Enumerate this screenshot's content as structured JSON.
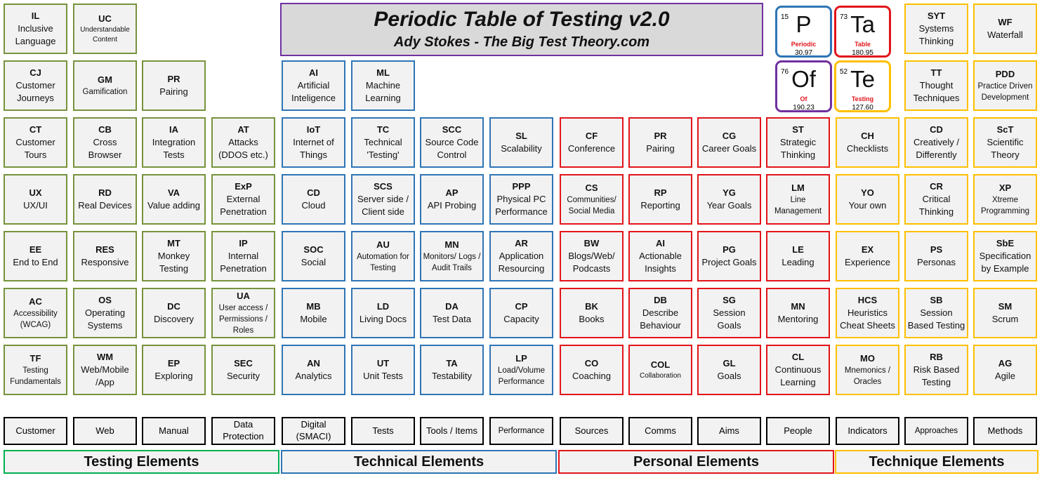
{
  "header": {
    "title": "Periodic Table of Testing v2.0",
    "subtitle": "Ady Stokes - The Big Test Theory.com"
  },
  "periodic_tiles": [
    {
      "number": "15",
      "symbol": "P",
      "name": "Periodic",
      "weight": "30.97",
      "color": "#2e75b6"
    },
    {
      "number": "73",
      "symbol": "Ta",
      "name": "Table",
      "weight": "180.95",
      "color": "#e2141a"
    },
    {
      "number": "76",
      "symbol": "Of",
      "name": "Of",
      "weight": "190.23",
      "color": "#7030a0"
    },
    {
      "number": "52",
      "symbol": "Te",
      "name": "Testing",
      "weight": "127.60",
      "color": "#ffc000"
    }
  ],
  "elements": {
    "IL": {
      "symbol": "IL",
      "name": "Inclusive Language"
    },
    "UC": {
      "symbol": "UC",
      "name": "Understandable Content"
    },
    "SYT": {
      "symbol": "SYT",
      "name": "Systems Thinking"
    },
    "WF": {
      "symbol": "WF",
      "name": "Waterfall"
    },
    "CJ": {
      "symbol": "CJ",
      "name": "Customer Journeys"
    },
    "GM": {
      "symbol": "GM",
      "name": "Gamification"
    },
    "PR1": {
      "symbol": "PR",
      "name": "Pairing"
    },
    "AI1": {
      "symbol": "AI",
      "name": "Artificial Inteligence"
    },
    "ML": {
      "symbol": "ML",
      "name": "Machine Learning"
    },
    "TT": {
      "symbol": "TT",
      "name": "Thought Techniques"
    },
    "PDD": {
      "symbol": "PDD",
      "name": "Practice Driven Development"
    },
    "CT": {
      "symbol": "CT",
      "name": "Customer Tours"
    },
    "CB": {
      "symbol": "CB",
      "name": "Cross Browser"
    },
    "IA": {
      "symbol": "IA",
      "name": "Integration Tests"
    },
    "AT": {
      "symbol": "AT",
      "name": "Attacks (DDOS etc.)"
    },
    "IoT": {
      "symbol": "IoT",
      "name": "Internet of Things"
    },
    "TC": {
      "symbol": "TC",
      "name": "Technical 'Testing'"
    },
    "SCC": {
      "symbol": "SCC",
      "name": "Source Code Control"
    },
    "SL": {
      "symbol": "SL",
      "name": "Scalability"
    },
    "CF": {
      "symbol": "CF",
      "name": "Conference"
    },
    "PR2": {
      "symbol": "PR",
      "name": "Pairing"
    },
    "CG": {
      "symbol": "CG",
      "name": "Career Goals"
    },
    "ST": {
      "symbol": "ST",
      "name": "Strategic Thinking"
    },
    "CH": {
      "symbol": "CH",
      "name": "Checklists"
    },
    "CD": {
      "symbol": "CD",
      "name": "Creatively / Differently"
    },
    "ScT": {
      "symbol": "ScT",
      "name": "Scientific Theory"
    },
    "UX": {
      "symbol": "UX",
      "name": "UX/UI"
    },
    "RD": {
      "symbol": "RD",
      "name": "Real Devices"
    },
    "VA": {
      "symbol": "VA",
      "name": "Value adding"
    },
    "ExP": {
      "symbol": "ExP",
      "name": "External Penetration"
    },
    "CD2": {
      "symbol": "CD",
      "name": "Cloud"
    },
    "SCS": {
      "symbol": "SCS",
      "name": "Server side / Client side"
    },
    "AP": {
      "symbol": "AP",
      "name": "API Probing"
    },
    "PPP": {
      "symbol": "PPP",
      "name": "Physical PC Performance"
    },
    "CS": {
      "symbol": "CS",
      "name": "Communities/ Social Media"
    },
    "RP": {
      "symbol": "RP",
      "name": "Reporting"
    },
    "YG": {
      "symbol": "YG",
      "name": "Year Goals"
    },
    "LM": {
      "symbol": "LM",
      "name": "Line Management"
    },
    "YO": {
      "symbol": "YO",
      "name": "Your own"
    },
    "CR": {
      "symbol": "CR",
      "name": "Critical Thinking"
    },
    "XP": {
      "symbol": "XP",
      "name": "Xtreme Programming"
    },
    "EE": {
      "symbol": "EE",
      "name": "End to End"
    },
    "RES": {
      "symbol": "RES",
      "name": "Responsive"
    },
    "MT": {
      "symbol": "MT",
      "name": "Monkey Testing"
    },
    "IP": {
      "symbol": "IP",
      "name": "Internal Penetration"
    },
    "SOC": {
      "symbol": "SOC",
      "name": "Social"
    },
    "AU": {
      "symbol": "AU",
      "name": "Automation for Testing"
    },
    "MN1": {
      "symbol": "MN",
      "name": "Monitors/ Logs / Audit Trails"
    },
    "AR": {
      "symbol": "AR",
      "name": "Application Resourcing"
    },
    "BW": {
      "symbol": "BW",
      "name": "Blogs/Web/ Podcasts"
    },
    "AI2": {
      "symbol": "AI",
      "name": "Actionable Insights"
    },
    "PG": {
      "symbol": "PG",
      "name": "Project Goals"
    },
    "LE": {
      "symbol": "LE",
      "name": "Leading"
    },
    "EX": {
      "symbol": "EX",
      "name": "Experience"
    },
    "PS": {
      "symbol": "PS",
      "name": "Personas"
    },
    "SbE": {
      "symbol": "SbE",
      "name": "Specification by Example"
    },
    "AC": {
      "symbol": "AC",
      "name": "Accessibility (WCAG)"
    },
    "OS": {
      "symbol": "OS",
      "name": "Operating Systems"
    },
    "DC": {
      "symbol": "DC",
      "name": "Discovery"
    },
    "UA": {
      "symbol": "UA",
      "name": "User access / Permissions / Roles"
    },
    "MB": {
      "symbol": "MB",
      "name": "Mobile"
    },
    "LD": {
      "symbol": "LD",
      "name": "Living Docs"
    },
    "DA": {
      "symbol": "DA",
      "name": "Test Data"
    },
    "CP": {
      "symbol": "CP",
      "name": "Capacity"
    },
    "BK": {
      "symbol": "BK",
      "name": "Books"
    },
    "DB": {
      "symbol": "DB",
      "name": "Describe Behaviour"
    },
    "SG": {
      "symbol": "SG",
      "name": "Session Goals"
    },
    "MN2": {
      "symbol": "MN",
      "name": "Mentoring"
    },
    "HCS": {
      "symbol": "HCS",
      "name": "Heuristics Cheat Sheets"
    },
    "SB": {
      "symbol": "SB",
      "name": "Session Based Testing"
    },
    "SM": {
      "symbol": "SM",
      "name": "Scrum"
    },
    "TF": {
      "symbol": "TF",
      "name": "Testing Fundamentals"
    },
    "WM": {
      "symbol": "WM",
      "name": "Web/Mobile /App"
    },
    "EP": {
      "symbol": "EP",
      "name": "Exploring"
    },
    "SEC": {
      "symbol": "SEC",
      "name": "Security"
    },
    "AN": {
      "symbol": "AN",
      "name": "Analytics"
    },
    "UT": {
      "symbol": "UT",
      "name": "Unit Tests"
    },
    "TA": {
      "symbol": "TA",
      "name": "Testability"
    },
    "LP": {
      "symbol": "LP",
      "name": "Load/Volume Performance"
    },
    "CO": {
      "symbol": "CO",
      "name": "Coaching"
    },
    "COL": {
      "symbol": "COL",
      "name": "Collaboration"
    },
    "GL": {
      "symbol": "GL",
      "name": "Goals"
    },
    "CL": {
      "symbol": "CL",
      "name": "Continuous Learning"
    },
    "MO": {
      "symbol": "MO",
      "name": "Mnemonics / Oracles"
    },
    "RB": {
      "symbol": "RB",
      "name": "Risk Based Testing"
    },
    "AG": {
      "symbol": "AG",
      "name": "Agile"
    }
  },
  "categories": {
    "customer": "Customer",
    "web": "Web",
    "manual": "Manual",
    "data_protection": "Data Protection",
    "digital": "Digital (SMACI)",
    "tests": "Tests",
    "tools": "Tools / Items",
    "performance": "Performance",
    "sources": "Sources",
    "comms": "Comms",
    "aims": "Aims",
    "people": "People",
    "indicators": "Indicators",
    "approaches": "Approaches",
    "methods": "Methods"
  },
  "sections": {
    "testing": "Testing Elements",
    "technical": "Technical Elements",
    "personal": "Personal Elements",
    "technique": "Technique Elements"
  },
  "colors": {
    "testing": "#77933c",
    "technical": "#2e75b6",
    "personal": "#e2141a",
    "technique": "#ffc000",
    "header_border": "#7030a0"
  }
}
